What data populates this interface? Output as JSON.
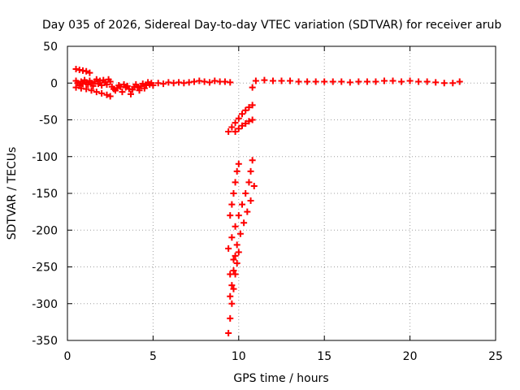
{
  "chart_data": {
    "type": "scatter",
    "title": "Day 035 of 2026, Sidereal Day-to-day VTEC variation (SDTVAR) for receiver arub",
    "xlabel": "GPS time / hours",
    "ylabel": "SDTVAR / TECUs",
    "xlim": [
      0,
      25
    ],
    "ylim": [
      -350,
      50
    ],
    "xticks": [
      "0",
      "5",
      "10",
      "15",
      "20",
      "25"
    ],
    "xtick_values": [
      0,
      5,
      10,
      15,
      20,
      25
    ],
    "yticks": [
      "50",
      "0",
      "-50",
      "-100",
      "-150",
      "-200",
      "-250",
      "-300",
      "-350"
    ],
    "ytick_values": [
      50,
      0,
      -50,
      -100,
      -150,
      -200,
      -250,
      -300,
      -350
    ],
    "grid": true,
    "marker": "plus",
    "color": "#ff0000",
    "series": [
      {
        "points": [
          [
            0.5,
            19
          ],
          [
            0.7,
            18
          ],
          [
            0.9,
            17
          ],
          [
            1.1,
            16
          ],
          [
            1.3,
            14
          ],
          [
            0.5,
            -6
          ],
          [
            0.8,
            -7
          ],
          [
            1.1,
            -8
          ],
          [
            1.4,
            -10
          ],
          [
            1.7,
            -12
          ],
          [
            2.0,
            -14
          ],
          [
            2.3,
            -16
          ],
          [
            2.5,
            -18
          ],
          [
            0.5,
            3
          ],
          [
            0.6,
            0
          ],
          [
            0.7,
            -3
          ],
          [
            0.8,
            2
          ],
          [
            0.9,
            -1
          ],
          [
            1.0,
            4
          ],
          [
            1.1,
            1
          ],
          [
            1.2,
            -2
          ],
          [
            1.3,
            3
          ],
          [
            1.4,
            0
          ],
          [
            1.5,
            -4
          ],
          [
            1.6,
            2
          ],
          [
            1.7,
            5
          ],
          [
            1.8,
            -1
          ],
          [
            1.9,
            3
          ],
          [
            2.0,
            -3
          ],
          [
            2.1,
            4
          ],
          [
            2.2,
            1
          ],
          [
            2.3,
            -2
          ],
          [
            2.4,
            5
          ],
          [
            2.5,
            2
          ],
          [
            2.6,
            -5
          ],
          [
            2.7,
            -8
          ],
          [
            2.8,
            -10
          ],
          [
            2.9,
            -7
          ],
          [
            3.0,
            -3
          ],
          [
            3.1,
            -5
          ],
          [
            3.2,
            -12
          ],
          [
            3.3,
            -2
          ],
          [
            3.4,
            -6
          ],
          [
            3.5,
            -4
          ],
          [
            3.6,
            -8
          ],
          [
            3.7,
            -15
          ],
          [
            3.8,
            -9
          ],
          [
            3.9,
            -5
          ],
          [
            4.0,
            -2
          ],
          [
            4.1,
            -6
          ],
          [
            4.2,
            -10
          ],
          [
            4.3,
            -4
          ],
          [
            4.4,
            -1
          ],
          [
            4.5,
            -7
          ],
          [
            4.6,
            -3
          ],
          [
            4.7,
            1
          ],
          [
            4.8,
            -2
          ],
          [
            4.9,
            0
          ],
          [
            5.0,
            -3
          ],
          [
            5.3,
            0
          ],
          [
            5.6,
            -1
          ],
          [
            5.9,
            1
          ],
          [
            6.2,
            0
          ],
          [
            6.5,
            1
          ],
          [
            6.8,
            0
          ],
          [
            7.1,
            1
          ],
          [
            7.4,
            2
          ],
          [
            7.7,
            3
          ],
          [
            8.0,
            2
          ],
          [
            8.3,
            1
          ],
          [
            8.6,
            3
          ],
          [
            8.9,
            2
          ],
          [
            9.2,
            2
          ],
          [
            9.5,
            1
          ],
          [
            10.8,
            -6
          ]
        ]
      },
      {
        "points": [
          [
            11.0,
            3
          ],
          [
            11.5,
            4
          ],
          [
            12.0,
            3
          ],
          [
            12.5,
            3
          ],
          [
            13.0,
            3
          ],
          [
            13.5,
            2
          ],
          [
            14.0,
            2
          ],
          [
            14.5,
            2
          ],
          [
            15.0,
            2
          ],
          [
            15.5,
            2
          ],
          [
            16.0,
            2
          ],
          [
            16.5,
            1
          ],
          [
            17.0,
            2
          ],
          [
            17.5,
            2
          ],
          [
            18.0,
            2
          ],
          [
            18.5,
            3
          ],
          [
            19.0,
            3
          ],
          [
            19.5,
            2
          ],
          [
            20.0,
            3
          ],
          [
            20.5,
            2
          ],
          [
            21.0,
            2
          ],
          [
            21.5,
            1
          ],
          [
            22.0,
            0
          ],
          [
            22.5,
            0
          ],
          [
            22.9,
            2
          ]
        ]
      },
      {
        "points": [
          [
            9.4,
            -66
          ],
          [
            9.6,
            -60
          ],
          [
            9.8,
            -54
          ],
          [
            10.0,
            -48
          ],
          [
            10.2,
            -42
          ],
          [
            10.4,
            -37
          ],
          [
            10.6,
            -33
          ],
          [
            10.8,
            -30
          ],
          [
            9.8,
            -66
          ],
          [
            10.0,
            -62
          ],
          [
            10.2,
            -58
          ],
          [
            10.4,
            -55
          ],
          [
            10.6,
            -52
          ],
          [
            10.8,
            -50
          ]
        ]
      },
      {
        "points": [
          [
            9.5,
            -180
          ],
          [
            9.6,
            -165
          ],
          [
            9.7,
            -150
          ],
          [
            9.8,
            -135
          ],
          [
            9.9,
            -120
          ],
          [
            10.0,
            -110
          ],
          [
            9.4,
            -225
          ],
          [
            9.6,
            -210
          ],
          [
            9.8,
            -195
          ],
          [
            10.0,
            -180
          ],
          [
            10.2,
            -165
          ],
          [
            10.4,
            -150
          ],
          [
            10.6,
            -135
          ],
          [
            10.7,
            -120
          ],
          [
            10.8,
            -105
          ],
          [
            9.5,
            -260
          ],
          [
            9.7,
            -240
          ],
          [
            9.9,
            -220
          ],
          [
            10.1,
            -205
          ],
          [
            10.3,
            -190
          ],
          [
            10.5,
            -175
          ],
          [
            10.7,
            -160
          ],
          [
            10.9,
            -140
          ],
          [
            9.4,
            -340
          ],
          [
            9.5,
            -320
          ],
          [
            9.6,
            -300
          ],
          [
            9.7,
            -280
          ],
          [
            9.8,
            -260
          ],
          [
            9.9,
            -245
          ],
          [
            10.0,
            -230
          ],
          [
            9.5,
            -290
          ],
          [
            9.6,
            -275
          ],
          [
            9.7,
            -255
          ],
          [
            9.8,
            -235
          ]
        ]
      }
    ]
  }
}
